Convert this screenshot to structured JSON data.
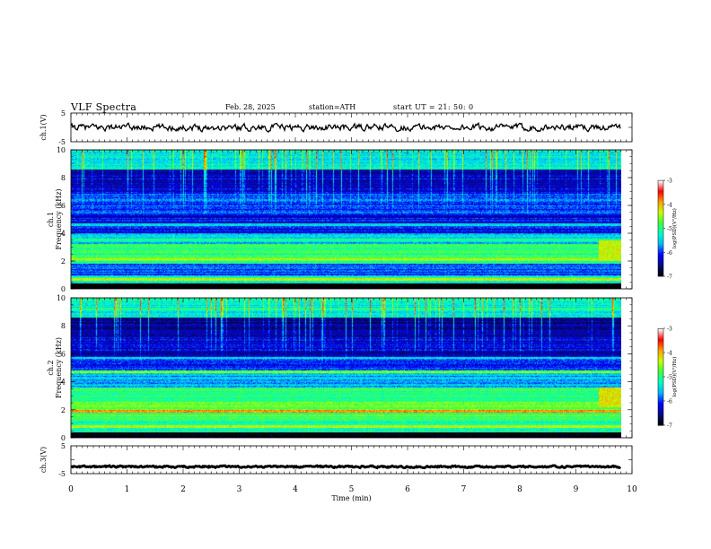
{
  "header": {
    "title": "VLF Spectra",
    "date": "Feb. 28, 2025",
    "station": "station=ATH",
    "start": "start UT =  21: 50: 0"
  },
  "colors": {
    "cmap": [
      "#000000",
      "#0a0a80",
      "#0000ff",
      "#00b4ff",
      "#00ffc8",
      "#40ff40",
      "#c8ff00",
      "#ffa000",
      "#ff0000",
      "#ffffff"
    ],
    "trace": "#000000",
    "axis": "#000000"
  },
  "chart_data": [
    {
      "type": "line",
      "panel": "ch1-waveform",
      "ylabel": "ch.1(V)",
      "ylim": [
        -5,
        5
      ],
      "yticks": [
        "5",
        "-5"
      ],
      "xlim": [
        0,
        10
      ],
      "x_end": 9.8,
      "noise_amplitude": 0.9,
      "level": 0
    },
    {
      "type": "heatmap",
      "panel": "ch1-spectrogram",
      "ylabel": "ch.1 Frequency (kHz)",
      "ylim": [
        0,
        10
      ],
      "yticks": [
        "0",
        "2",
        "4",
        "6",
        "8",
        "10"
      ],
      "xlim": [
        0,
        10
      ],
      "x_end": 9.8,
      "colorbar": {
        "label": "log(PSD)(V²/Hz)",
        "range": [
          -7,
          -3
        ],
        "ticks": [
          "-3",
          "-4",
          "-5",
          "-6",
          "-7"
        ]
      },
      "bands": [
        {
          "fmin": 0.0,
          "fmax": 0.4,
          "level": -7.2
        },
        {
          "fmin": 0.4,
          "fmax": 1.0,
          "level": -5.3
        },
        {
          "fmin": 1.0,
          "fmax": 1.8,
          "level": -5.9
        },
        {
          "fmin": 1.8,
          "fmax": 3.2,
          "level": -5.0
        },
        {
          "fmin": 3.2,
          "fmax": 4.0,
          "level": -5.5
        },
        {
          "fmin": 4.0,
          "fmax": 5.4,
          "level": -6.2
        },
        {
          "fmin": 5.4,
          "fmax": 7.0,
          "level": -6.0
        },
        {
          "fmin": 7.0,
          "fmax": 8.6,
          "level": -6.3
        },
        {
          "fmin": 8.6,
          "fmax": 10.0,
          "level": -5.4
        }
      ],
      "lines": [
        {
          "f": 0.7,
          "level": -4.2
        },
        {
          "f": 2.1,
          "level": -4.5
        },
        {
          "f": 3.5,
          "level": -5.2
        },
        {
          "f": 4.6,
          "level": -5.6
        },
        {
          "f": 6.4,
          "level": -5.8
        }
      ],
      "hot_region": {
        "t0": 9.4,
        "t1": 9.8,
        "fmin": 2.0,
        "fmax": 3.5,
        "level": -4.3
      }
    },
    {
      "type": "heatmap",
      "panel": "ch2-spectrogram",
      "ylabel": "ch.2 Frequency (kHz)",
      "ylim": [
        0,
        10
      ],
      "yticks": [
        "0",
        "2",
        "4",
        "6",
        "8",
        "10"
      ],
      "xlim": [
        0,
        10
      ],
      "x_end": 9.8,
      "colorbar": {
        "label": "log(PSD)(V²/Hz)",
        "range": [
          -7,
          -3
        ],
        "ticks": [
          "-3",
          "-4",
          "-5",
          "-6",
          "-7"
        ]
      },
      "bands": [
        {
          "fmin": 0.0,
          "fmax": 0.4,
          "level": -7.0
        },
        {
          "fmin": 0.4,
          "fmax": 1.2,
          "level": -5.2
        },
        {
          "fmin": 1.2,
          "fmax": 2.6,
          "level": -4.8
        },
        {
          "fmin": 2.6,
          "fmax": 3.6,
          "level": -5.0
        },
        {
          "fmin": 3.6,
          "fmax": 4.8,
          "level": -5.6
        },
        {
          "fmin": 4.8,
          "fmax": 5.8,
          "level": -6.0
        },
        {
          "fmin": 5.8,
          "fmax": 7.2,
          "level": -6.3
        },
        {
          "fmin": 7.2,
          "fmax": 8.6,
          "level": -6.5
        },
        {
          "fmin": 8.6,
          "fmax": 10.0,
          "level": -5.3
        }
      ],
      "lines": [
        {
          "f": 0.8,
          "level": -4.3
        },
        {
          "f": 1.9,
          "level": -3.9
        },
        {
          "f": 3.4,
          "level": -4.6
        },
        {
          "f": 4.7,
          "level": -4.8
        },
        {
          "f": 5.7,
          "level": -5.4
        }
      ],
      "hot_region": {
        "t0": 9.4,
        "t1": 9.8,
        "fmin": 2.2,
        "fmax": 3.6,
        "level": -4.2
      }
    },
    {
      "type": "line",
      "panel": "ch3-waveform",
      "ylabel": "ch.3(V)",
      "ylim": [
        -5,
        5
      ],
      "yticks": [
        "5",
        "-5"
      ],
      "xlim": [
        0,
        10
      ],
      "x_end": 9.8,
      "noise_amplitude": 0.25,
      "level": -2.5
    }
  ],
  "xaxis": {
    "label": "Time (min)",
    "ticks": [
      "0",
      "1",
      "2",
      "3",
      "4",
      "5",
      "6",
      "7",
      "8",
      "9",
      "10"
    ]
  }
}
